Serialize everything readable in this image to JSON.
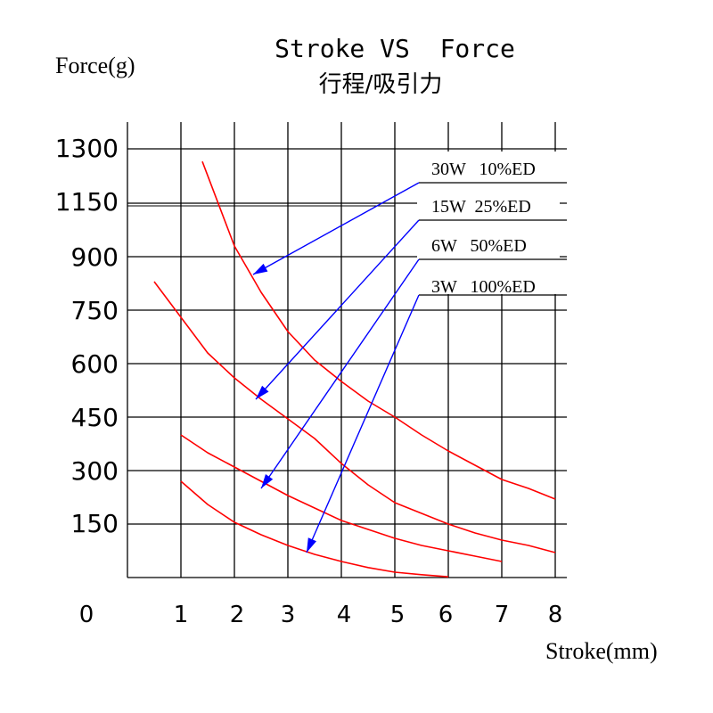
{
  "chart_data": {
    "type": "line",
    "title": "Stroke VS  Force",
    "subtitle": "行程/吸引力",
    "xlabel": "Stroke(mm)",
    "ylabel": "Force(g)",
    "x_ticks": [
      "1",
      "2",
      "3",
      "4",
      "5",
      "6",
      "7",
      "8"
    ],
    "x_origin_label": "0",
    "y_ticks": [
      "150",
      "300",
      "450",
      "600",
      "750",
      "900",
      "1150",
      "1300"
    ],
    "grid": true,
    "legend_position": "top-right",
    "colors": {
      "curve": "#ff0000",
      "arrow": "#0000ff",
      "grid": "#000000"
    },
    "series": [
      {
        "name": "30W   10%ED",
        "x": [
          1.4,
          2.0,
          2.5,
          3.0,
          3.5,
          4.0,
          4.5,
          5.0,
          5.5,
          6.0,
          6.5,
          7.0,
          7.5,
          8.0
        ],
        "y": [
          1265,
          950,
          800,
          690,
          610,
          550,
          495,
          450,
          400,
          355,
          315,
          275,
          250,
          220
        ]
      },
      {
        "name": "15W  25%ED",
        "x": [
          0.5,
          1.0,
          1.5,
          2.0,
          2.5,
          3.0,
          3.5,
          4.0,
          4.5,
          5.0,
          5.5,
          6.0,
          6.5,
          7.0,
          7.5,
          8.0
        ],
        "y": [
          830,
          730,
          630,
          560,
          500,
          445,
          390,
          320,
          260,
          210,
          180,
          150,
          125,
          105,
          90,
          70
        ]
      },
      {
        "name": "6W   50%ED",
        "x": [
          1.0,
          1.5,
          2.0,
          2.5,
          3.0,
          3.5,
          4.0,
          4.5,
          5.0,
          5.5,
          6.0,
          6.5,
          7.0
        ],
        "y": [
          400,
          350,
          310,
          270,
          230,
          195,
          160,
          135,
          110,
          90,
          75,
          60,
          45
        ]
      },
      {
        "name": "3W   100%ED",
        "x": [
          1.0,
          1.5,
          2.0,
          2.5,
          3.0,
          3.5,
          4.0,
          4.5,
          5.0,
          5.5,
          6.0
        ],
        "y": [
          270,
          205,
          155,
          120,
          90,
          65,
          45,
          28,
          15,
          8,
          2
        ]
      }
    ]
  }
}
